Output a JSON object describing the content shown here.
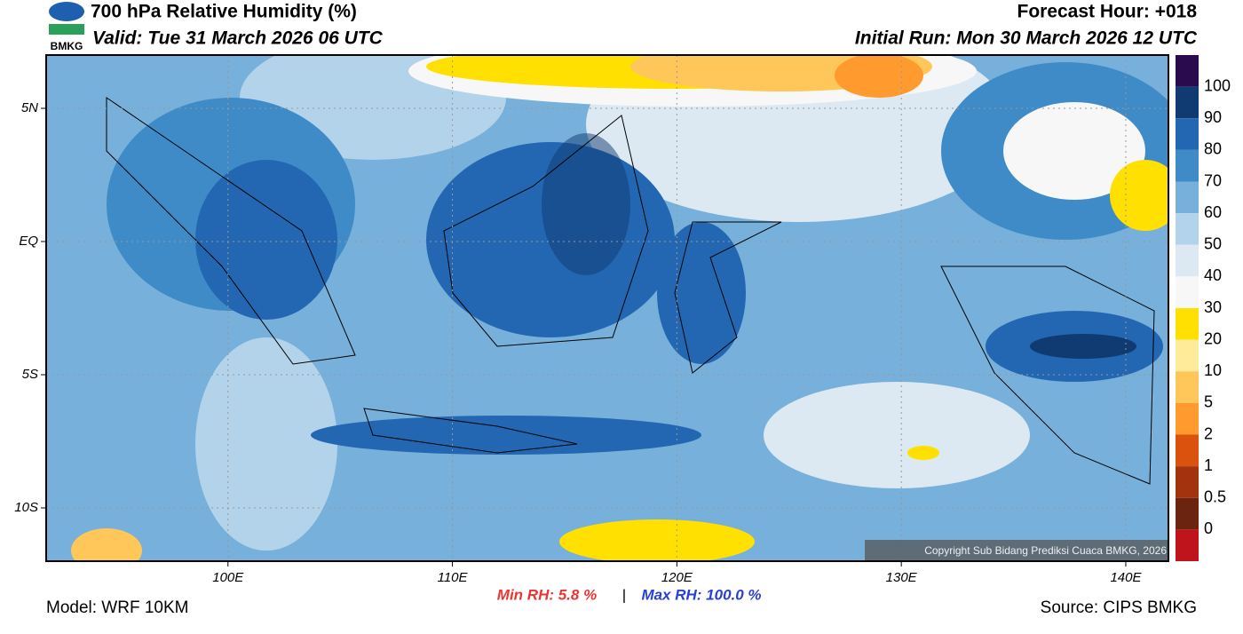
{
  "header": {
    "title": "700 hPa Relative Humidity (%)",
    "valid": "Valid: Tue 31 March 2026 06 UTC",
    "forecast_hour": "Forecast Hour: +018",
    "initial_run": "Initial Run: Mon 30 March 2026 12 UTC",
    "logo_text": "BMKG"
  },
  "map": {
    "lon_range": [
      91.9,
      141.9
    ],
    "lat_range": [
      -12,
      7
    ],
    "lon_ticks": [
      {
        "value": 100,
        "label": "100E"
      },
      {
        "value": 110,
        "label": "110E"
      },
      {
        "value": 120,
        "label": "120E"
      },
      {
        "value": 130,
        "label": "130E"
      },
      {
        "value": 140,
        "label": "140E"
      }
    ],
    "lat_ticks": [
      {
        "value": 5,
        "label": "5N"
      },
      {
        "value": 0,
        "label": "EQ"
      },
      {
        "value": -5,
        "label": "5S"
      },
      {
        "value": -10,
        "label": "10S"
      }
    ],
    "copyright": "Copyright Sub Bidang Prediksi Cuaca BMKG, 2026"
  },
  "colorbar": {
    "labels": [
      "100",
      "90",
      "80",
      "70",
      "60",
      "50",
      "40",
      "30",
      "20",
      "10",
      "5",
      "2",
      "1",
      "0.5",
      "0"
    ],
    "colors": [
      "#2a0b4e",
      "#0f3a72",
      "#2367b3",
      "#3f8bc7",
      "#77b0da",
      "#b3d3ea",
      "#dce9f3",
      "#f7f7f7",
      "#ffe000",
      "#ffeb99",
      "#ffc65a",
      "#ff9b2e",
      "#d9530e",
      "#a3320e",
      "#6b2410",
      "#c0141c",
      "#e8392f"
    ]
  },
  "footer": {
    "model": "Model: WRF 10KM",
    "source": "Source: CIPS BMKG",
    "min_rh": "Min RH:   5.8 %",
    "separator": "|",
    "max_rh": "Max RH: 100.0 %"
  }
}
